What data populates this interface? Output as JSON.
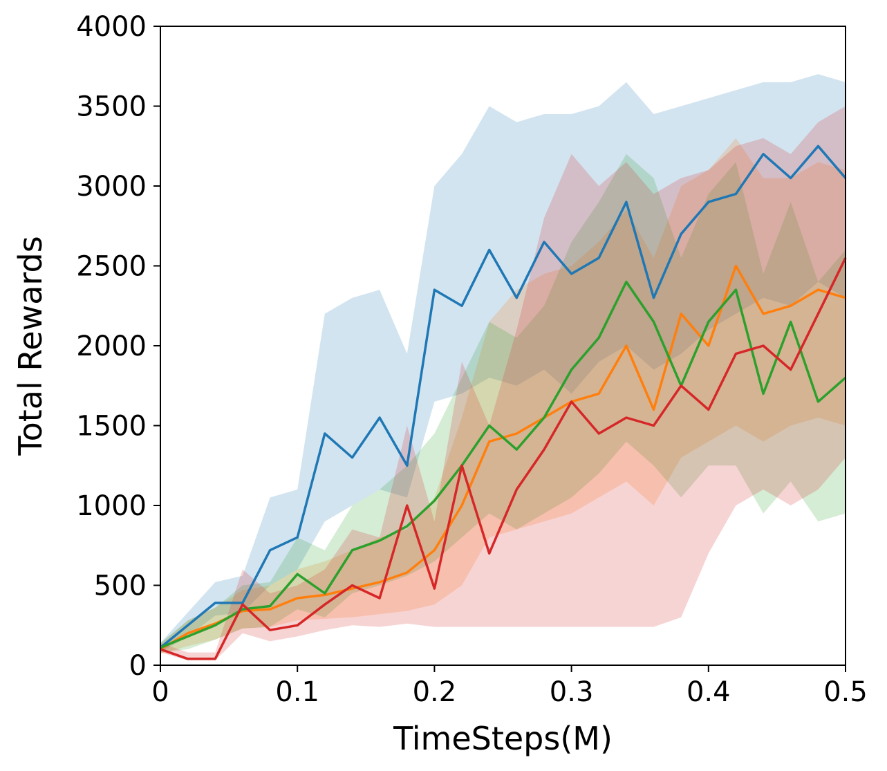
{
  "chart_data": {
    "type": "line",
    "title": "",
    "xlabel": "TimeSteps(M)",
    "ylabel": "Total Rewards",
    "xlim": [
      0,
      0.5
    ],
    "ylim": [
      0,
      4000
    ],
    "x_ticks": [
      0,
      0.1,
      0.2,
      0.3,
      0.4,
      0.5
    ],
    "x_tick_labels": [
      "0",
      "0.1",
      "0.2",
      "0.3",
      "0.4",
      "0.5"
    ],
    "y_ticks": [
      0,
      500,
      1000,
      1500,
      2000,
      2500,
      3000,
      3500,
      4000
    ],
    "y_tick_labels": [
      "0",
      "500",
      "1000",
      "1500",
      "2000",
      "2500",
      "3000",
      "3500",
      "4000"
    ],
    "grid": false,
    "legend": "none",
    "x": [
      0,
      0.02,
      0.04,
      0.06,
      0.08,
      0.1,
      0.12,
      0.14,
      0.16,
      0.18,
      0.2,
      0.22,
      0.24,
      0.26,
      0.28,
      0.3,
      0.32,
      0.34,
      0.36,
      0.38,
      0.4,
      0.42,
      0.44,
      0.46,
      0.48,
      0.5
    ],
    "series": [
      {
        "color": "#1f77b4",
        "values": [
          110,
          250,
          390,
          390,
          720,
          800,
          1450,
          1300,
          1550,
          1250,
          2350,
          2250,
          2600,
          2300,
          2650,
          2450,
          2550,
          2900,
          2300,
          2700,
          2900,
          2950,
          3200,
          3050,
          3250,
          3050
        ],
        "lower": [
          80,
          180,
          310,
          330,
          500,
          600,
          900,
          1000,
          1100,
          1050,
          1650,
          1700,
          1800,
          1750,
          1850,
          1700,
          1900,
          2000,
          1850,
          1950,
          2100,
          2200,
          2300,
          2250,
          2400,
          2300
        ],
        "upper": [
          140,
          330,
          520,
          560,
          1050,
          1100,
          2200,
          2300,
          2350,
          1950,
          3000,
          3200,
          3500,
          3400,
          3450,
          3450,
          3500,
          3650,
          3450,
          3500,
          3550,
          3600,
          3650,
          3650,
          3700,
          3650
        ]
      },
      {
        "color": "#ff7f0e",
        "values": [
          100,
          200,
          260,
          340,
          350,
          420,
          440,
          480,
          520,
          580,
          720,
          1000,
          1400,
          1450,
          1550,
          1650,
          1700,
          2000,
          1600,
          2200,
          2000,
          2500,
          2200,
          2250,
          2350,
          2300
        ],
        "lower": [
          70,
          120,
          160,
          230,
          240,
          280,
          290,
          300,
          320,
          340,
          380,
          500,
          800,
          850,
          900,
          950,
          1050,
          1150,
          1000,
          1300,
          1400,
          1500,
          1400,
          1500,
          1550,
          1500
        ],
        "upper": [
          130,
          280,
          360,
          470,
          500,
          600,
          650,
          720,
          800,
          850,
          1050,
          1550,
          2150,
          2350,
          2450,
          2500,
          2650,
          2850,
          2550,
          3000,
          3100,
          3300,
          3050,
          3050,
          3150,
          3100
        ]
      },
      {
        "color": "#2ca02c",
        "values": [
          110,
          180,
          250,
          350,
          370,
          570,
          450,
          720,
          780,
          870,
          1030,
          1250,
          1500,
          1350,
          1550,
          1850,
          2050,
          2400,
          2150,
          1750,
          2150,
          2350,
          1700,
          2150,
          1650,
          1800
        ],
        "lower": [
          80,
          100,
          160,
          230,
          240,
          350,
          300,
          450,
          500,
          560,
          650,
          800,
          950,
          850,
          950,
          1050,
          1200,
          1400,
          1250,
          1050,
          1250,
          1250,
          950,
          1150,
          900,
          950
        ],
        "upper": [
          140,
          280,
          360,
          500,
          520,
          800,
          720,
          1000,
          1100,
          1250,
          1450,
          1800,
          2150,
          2050,
          2250,
          2650,
          2900,
          3200,
          3050,
          2550,
          2950,
          3150,
          2450,
          2900,
          2400,
          2600
        ]
      },
      {
        "color": "#d62728",
        "values": [
          100,
          40,
          40,
          380,
          220,
          250,
          380,
          500,
          420,
          1000,
          480,
          1250,
          700,
          1100,
          1350,
          1650,
          1450,
          1550,
          1500,
          1750,
          1600,
          1950,
          2000,
          1850,
          2200,
          2550
        ],
        "lower": [
          80,
          30,
          30,
          200,
          150,
          180,
          220,
          250,
          240,
          260,
          240,
          240,
          240,
          240,
          240,
          240,
          240,
          240,
          240,
          300,
          700,
          1000,
          1100,
          1000,
          1100,
          1300
        ],
        "upper": [
          140,
          80,
          80,
          600,
          450,
          500,
          600,
          850,
          800,
          1500,
          900,
          1900,
          1500,
          2100,
          2800,
          3200,
          3000,
          3150,
          2950,
          3050,
          3100,
          3250,
          3300,
          3200,
          3400,
          3500
        ]
      }
    ]
  }
}
